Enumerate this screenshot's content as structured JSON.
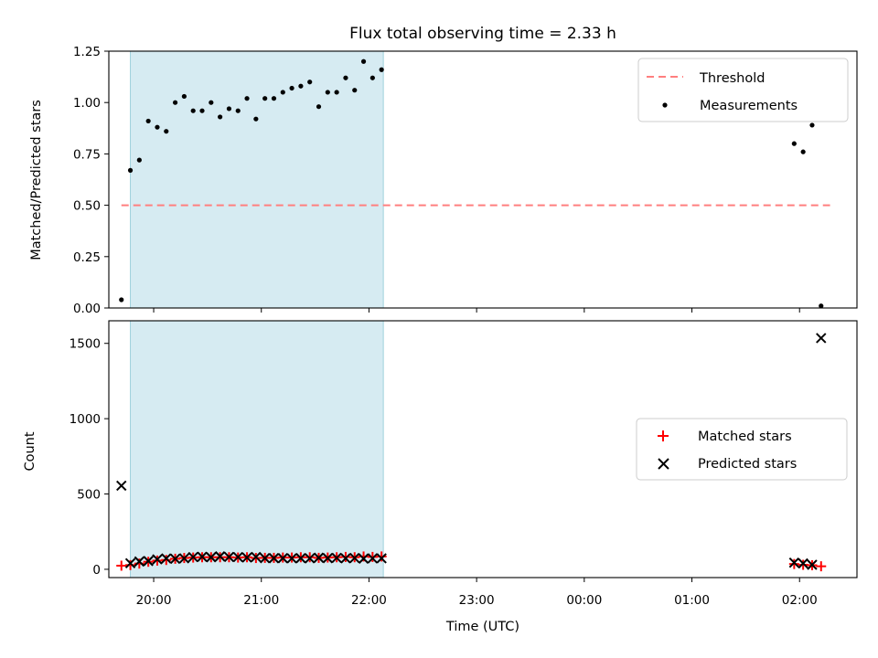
{
  "chart_data": [
    {
      "type": "scatter",
      "title": "Flux total observing time = 2.33 h",
      "xlabel": "",
      "ylabel": "Matched/Predicted stars",
      "ylim": [
        0,
        1.25
      ],
      "yticks": [
        "0.00",
        "0.25",
        "0.50",
        "0.75",
        "1.00",
        "1.25"
      ],
      "xlim": [
        "19:35",
        "02:32"
      ],
      "grid": false,
      "legend": "top-right",
      "shaded_window": [
        "19:47",
        "22:08"
      ],
      "threshold": {
        "name": "Threshold",
        "y": 0.5,
        "x_range": [
          "19:42",
          "02:17"
        ],
        "color": "#ff7f7f"
      },
      "series": [
        {
          "name": "Measurements",
          "color": "#000000",
          "points": [
            [
              "19:42",
              0.04
            ],
            [
              "19:47",
              0.67
            ],
            [
              "19:52",
              0.72
            ],
            [
              "19:57",
              0.91
            ],
            [
              "20:02",
              0.88
            ],
            [
              "20:07",
              0.86
            ],
            [
              "20:12",
              1.0
            ],
            [
              "20:17",
              1.03
            ],
            [
              "20:22",
              0.96
            ],
            [
              "20:27",
              0.96
            ],
            [
              "20:32",
              1.0
            ],
            [
              "20:37",
              0.93
            ],
            [
              "20:42",
              0.97
            ],
            [
              "20:47",
              0.96
            ],
            [
              "20:52",
              1.02
            ],
            [
              "20:57",
              0.92
            ],
            [
              "21:02",
              1.02
            ],
            [
              "21:07",
              1.02
            ],
            [
              "21:12",
              1.05
            ],
            [
              "21:17",
              1.07
            ],
            [
              "21:22",
              1.08
            ],
            [
              "21:27",
              1.1
            ],
            [
              "21:32",
              0.98
            ],
            [
              "21:37",
              1.05
            ],
            [
              "21:42",
              1.05
            ],
            [
              "21:47",
              1.12
            ],
            [
              "21:52",
              1.06
            ],
            [
              "21:57",
              1.2
            ],
            [
              "22:02",
              1.12
            ],
            [
              "22:07",
              1.16
            ],
            [
              "01:57",
              0.8
            ],
            [
              "02:02",
              0.76
            ],
            [
              "02:07",
              0.89
            ],
            [
              "02:12",
              0.01
            ]
          ]
        }
      ]
    },
    {
      "type": "scatter",
      "title": "",
      "xlabel": "Time (UTC)",
      "ylabel": "Count",
      "ylim": [
        -55,
        1650
      ],
      "yticks": [
        "0",
        "500",
        "1000",
        "1500"
      ],
      "xticks": [
        "20:00",
        "21:00",
        "22:00",
        "23:00",
        "00:00",
        "01:00",
        "02:00"
      ],
      "grid": false,
      "legend": "center-right",
      "shaded_window": [
        "19:47",
        "22:08"
      ],
      "series": [
        {
          "name": "Matched stars",
          "color": "#ff0000",
          "points": [
            [
              "19:42",
              24
            ],
            [
              "19:47",
              28
            ],
            [
              "19:52",
              38
            ],
            [
              "19:57",
              50
            ],
            [
              "20:02",
              58
            ],
            [
              "20:07",
              62
            ],
            [
              "20:12",
              70
            ],
            [
              "20:17",
              75
            ],
            [
              "20:22",
              78
            ],
            [
              "20:27",
              80
            ],
            [
              "20:32",
              80
            ],
            [
              "20:37",
              80
            ],
            [
              "20:42",
              80
            ],
            [
              "20:47",
              78
            ],
            [
              "20:52",
              80
            ],
            [
              "20:57",
              75
            ],
            [
              "21:02",
              76
            ],
            [
              "21:07",
              76
            ],
            [
              "21:12",
              78
            ],
            [
              "21:17",
              78
            ],
            [
              "21:22",
              80
            ],
            [
              "21:27",
              80
            ],
            [
              "21:32",
              76
            ],
            [
              "21:37",
              78
            ],
            [
              "21:42",
              80
            ],
            [
              "21:47",
              82
            ],
            [
              "21:52",
              80
            ],
            [
              "21:57",
              85
            ],
            [
              "22:02",
              82
            ],
            [
              "22:07",
              85
            ],
            [
              "01:57",
              35
            ],
            [
              "02:02",
              30
            ],
            [
              "02:07",
              27
            ],
            [
              "02:12",
              20
            ]
          ]
        },
        {
          "name": "Predicted stars",
          "color": "#000000",
          "points": [
            [
              "19:42",
              555
            ],
            [
              "19:47",
              40
            ],
            [
              "19:52",
              52
            ],
            [
              "19:57",
              55
            ],
            [
              "20:02",
              66
            ],
            [
              "20:07",
              72
            ],
            [
              "20:12",
              70
            ],
            [
              "20:17",
              73
            ],
            [
              "20:22",
              81
            ],
            [
              "20:27",
              83
            ],
            [
              "20:32",
              80
            ],
            [
              "20:37",
              86
            ],
            [
              "20:42",
              82
            ],
            [
              "20:47",
              81
            ],
            [
              "20:52",
              78
            ],
            [
              "20:57",
              82
            ],
            [
              "21:02",
              74
            ],
            [
              "21:07",
              74
            ],
            [
              "21:12",
              74
            ],
            [
              "21:17",
              73
            ],
            [
              "21:22",
              74
            ],
            [
              "21:27",
              73
            ],
            [
              "21:32",
              77
            ],
            [
              "21:37",
              74
            ],
            [
              "21:42",
              76
            ],
            [
              "21:47",
              73
            ],
            [
              "21:52",
              75
            ],
            [
              "21:57",
              71
            ],
            [
              "22:02",
              73
            ],
            [
              "22:07",
              73
            ],
            [
              "01:57",
              44
            ],
            [
              "02:02",
              39
            ],
            [
              "02:07",
              30
            ],
            [
              "02:12",
              1535
            ]
          ]
        }
      ]
    }
  ]
}
